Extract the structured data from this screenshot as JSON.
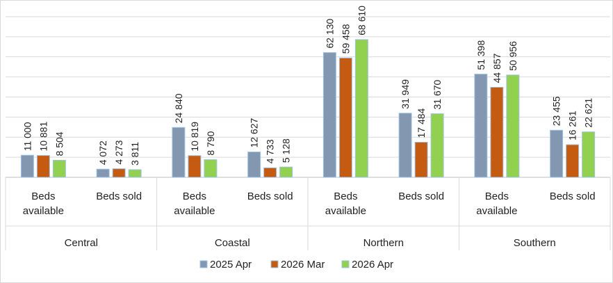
{
  "chart_data": {
    "type": "bar",
    "categories": [
      "Beds available",
      "Beds sold",
      "Beds available",
      "Beds sold",
      "Beds available",
      "Beds sold",
      "Beds available",
      "Beds sold"
    ],
    "groups": [
      "Central",
      "Coastal",
      "Northern",
      "Southern"
    ],
    "series": [
      {
        "name": "2025 Apr",
        "color": "#8497b0",
        "values": [
          11000,
          4072,
          24840,
          12627,
          62130,
          31949,
          51398,
          23455
        ],
        "value_labels": [
          "11 000",
          "4 072",
          "24 840",
          "12 627",
          "62 130",
          "31 949",
          "51 398",
          "23 455"
        ]
      },
      {
        "name": "2026 Mar",
        "color": "#c55a11",
        "values": [
          10881,
          4273,
          10819,
          4733,
          59458,
          17484,
          44857,
          16261
        ],
        "value_labels": [
          "10 881",
          "4 273",
          "10 819",
          "4 733",
          "59 458",
          "17 484",
          "44 857",
          "16 261"
        ]
      },
      {
        "name": "2026 Apr",
        "color": "#92d050",
        "values": [
          8504,
          3811,
          8790,
          5128,
          68610,
          31670,
          50956,
          22621
        ],
        "value_labels": [
          "8 504",
          "3 811",
          "8 790",
          "5 128",
          "68 610",
          "31 670",
          "50 956",
          "22 621"
        ]
      }
    ],
    "ylim": [
      0,
      80000
    ],
    "yticks": [
      0,
      10000,
      20000,
      30000,
      40000,
      50000,
      60000,
      70000,
      80000
    ],
    "grid": true
  }
}
